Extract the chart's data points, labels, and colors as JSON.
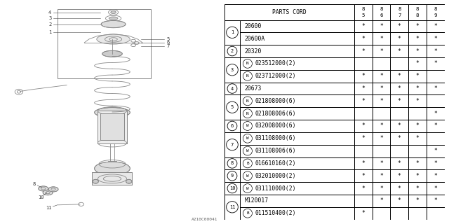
{
  "watermark": "A210C00041",
  "table_header": "PARTS CORD",
  "year_cols": [
    "85",
    "86",
    "87",
    "88",
    "89"
  ],
  "rows": [
    {
      "num": "1",
      "parts": [
        {
          "prefix": "",
          "code": "20600",
          "marks": [
            "*",
            "*",
            "*",
            "*",
            "*"
          ]
        },
        {
          "prefix": "",
          "code": "20600A",
          "marks": [
            "*",
            "*",
            "*",
            "*",
            "*"
          ]
        }
      ]
    },
    {
      "num": "2",
      "parts": [
        {
          "prefix": "",
          "code": "20320",
          "marks": [
            "*",
            "*",
            "*",
            "*",
            "*"
          ]
        }
      ]
    },
    {
      "num": "3",
      "parts": [
        {
          "prefix": "N",
          "code": "023512000(2)",
          "marks": [
            "",
            "",
            "",
            "*",
            "*"
          ]
        },
        {
          "prefix": "N",
          "code": "023712000(2)",
          "marks": [
            "*",
            "*",
            "*",
            "*",
            ""
          ]
        }
      ]
    },
    {
      "num": "4",
      "parts": [
        {
          "prefix": "",
          "code": "20673",
          "marks": [
            "*",
            "*",
            "*",
            "*",
            "*"
          ]
        }
      ]
    },
    {
      "num": "5",
      "parts": [
        {
          "prefix": "N",
          "code": "021808000(6)",
          "marks": [
            "*",
            "*",
            "*",
            "*",
            ""
          ]
        },
        {
          "prefix": "N",
          "code": "021808006(6)",
          "marks": [
            "",
            "",
            "",
            "",
            "*"
          ]
        }
      ]
    },
    {
      "num": "6",
      "parts": [
        {
          "prefix": "W",
          "code": "032008000(6)",
          "marks": [
            "*",
            "*",
            "*",
            "*",
            "*"
          ]
        }
      ]
    },
    {
      "num": "7",
      "parts": [
        {
          "prefix": "W",
          "code": "031108000(6)",
          "marks": [
            "*",
            "*",
            "*",
            "*",
            ""
          ]
        },
        {
          "prefix": "W",
          "code": "031108006(6)",
          "marks": [
            "",
            "",
            "",
            "",
            "*"
          ]
        }
      ]
    },
    {
      "num": "8",
      "parts": [
        {
          "prefix": "B",
          "code": "016610160(2)",
          "marks": [
            "*",
            "*",
            "*",
            "*",
            "*"
          ]
        }
      ]
    },
    {
      "num": "9",
      "parts": [
        {
          "prefix": "W",
          "code": "032010000(2)",
          "marks": [
            "*",
            "*",
            "*",
            "*",
            "*"
          ]
        }
      ]
    },
    {
      "num": "10",
      "parts": [
        {
          "prefix": "W",
          "code": "031110000(2)",
          "marks": [
            "*",
            "*",
            "*",
            "*",
            "*"
          ]
        }
      ]
    },
    {
      "num": "11",
      "parts": [
        {
          "prefix": "",
          "code": "M120017",
          "marks": [
            "",
            "*",
            "*",
            "*",
            "*"
          ]
        },
        {
          "prefix": "B",
          "code": "011510400(2)",
          "marks": [
            "*",
            "",
            "",
            "",
            ""
          ]
        }
      ]
    }
  ],
  "bg_color": "#ffffff",
  "line_color": "#000000",
  "text_color": "#000000",
  "diagram_color": "#888888"
}
